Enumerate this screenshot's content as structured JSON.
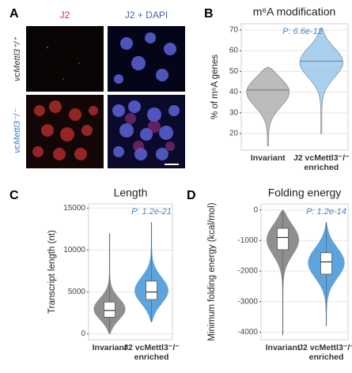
{
  "panel_a": {
    "panel": "A",
    "columns": [
      "J2",
      "J2 + DAPI"
    ],
    "rows": [
      "vcMettl3⁺/⁺",
      "vcMettl3⁻/⁻"
    ]
  },
  "chart_data": [
    {
      "type": "violin",
      "panel": "B",
      "title": "m⁶A modification",
      "ylabel": "% of m⁶A genes",
      "annotation": "P: 6.6e-12",
      "categories": [
        "Invariant",
        "J2 vcMettl3⁻/⁻ enriched"
      ],
      "colors": [
        "#a6a6a6",
        "#8cc0ea"
      ],
      "min": [
        14,
        20
      ],
      "q1": [
        36,
        50
      ],
      "median": [
        41,
        55
      ],
      "q3": [
        46,
        60
      ],
      "max": [
        52,
        71
      ],
      "ylim": [
        12,
        73
      ],
      "yticks": [
        20,
        30,
        40,
        50,
        60,
        70
      ],
      "grid": true,
      "box": false
    },
    {
      "type": "violin",
      "panel": "C",
      "title": "Length",
      "ylabel": "Transcript length (nt)",
      "annotation": "P: 1.2e-21",
      "categories": [
        "Invariant",
        "J2 vcMettl3⁻/⁻ enriched"
      ],
      "colors": [
        "#8f8f8f",
        "#5ea4dc"
      ],
      "min": [
        0,
        1400
      ],
      "q1": [
        2000,
        4100
      ],
      "median": [
        2800,
        5000
      ],
      "q3": [
        3800,
        6300
      ],
      "max": [
        12000,
        13300
      ],
      "ylim": [
        -700,
        15500
      ],
      "yticks": [
        0,
        5000,
        10000,
        15000
      ],
      "grid": true,
      "box": true
    },
    {
      "type": "violin",
      "panel": "D",
      "title": "Folding energy",
      "ylabel": "Minimum folding energy (kcal/mol)",
      "annotation": "P: 1.2e-14",
      "categories": [
        "Invariant",
        "J2 vcMettl3⁻/⁻ enriched"
      ],
      "colors": [
        "#8f8f8f",
        "#5ea4dc"
      ],
      "min": [
        -4100,
        -3800
      ],
      "q1": [
        -1300,
        -2100
      ],
      "median": [
        -900,
        -1700
      ],
      "q3": [
        -600,
        -1400
      ],
      "max": [
        0,
        -400
      ],
      "ylim": [
        -4250,
        200
      ],
      "yticks": [
        0,
        -1000,
        -2000,
        -3000,
        -4000
      ],
      "grid": true,
      "box": true
    }
  ]
}
